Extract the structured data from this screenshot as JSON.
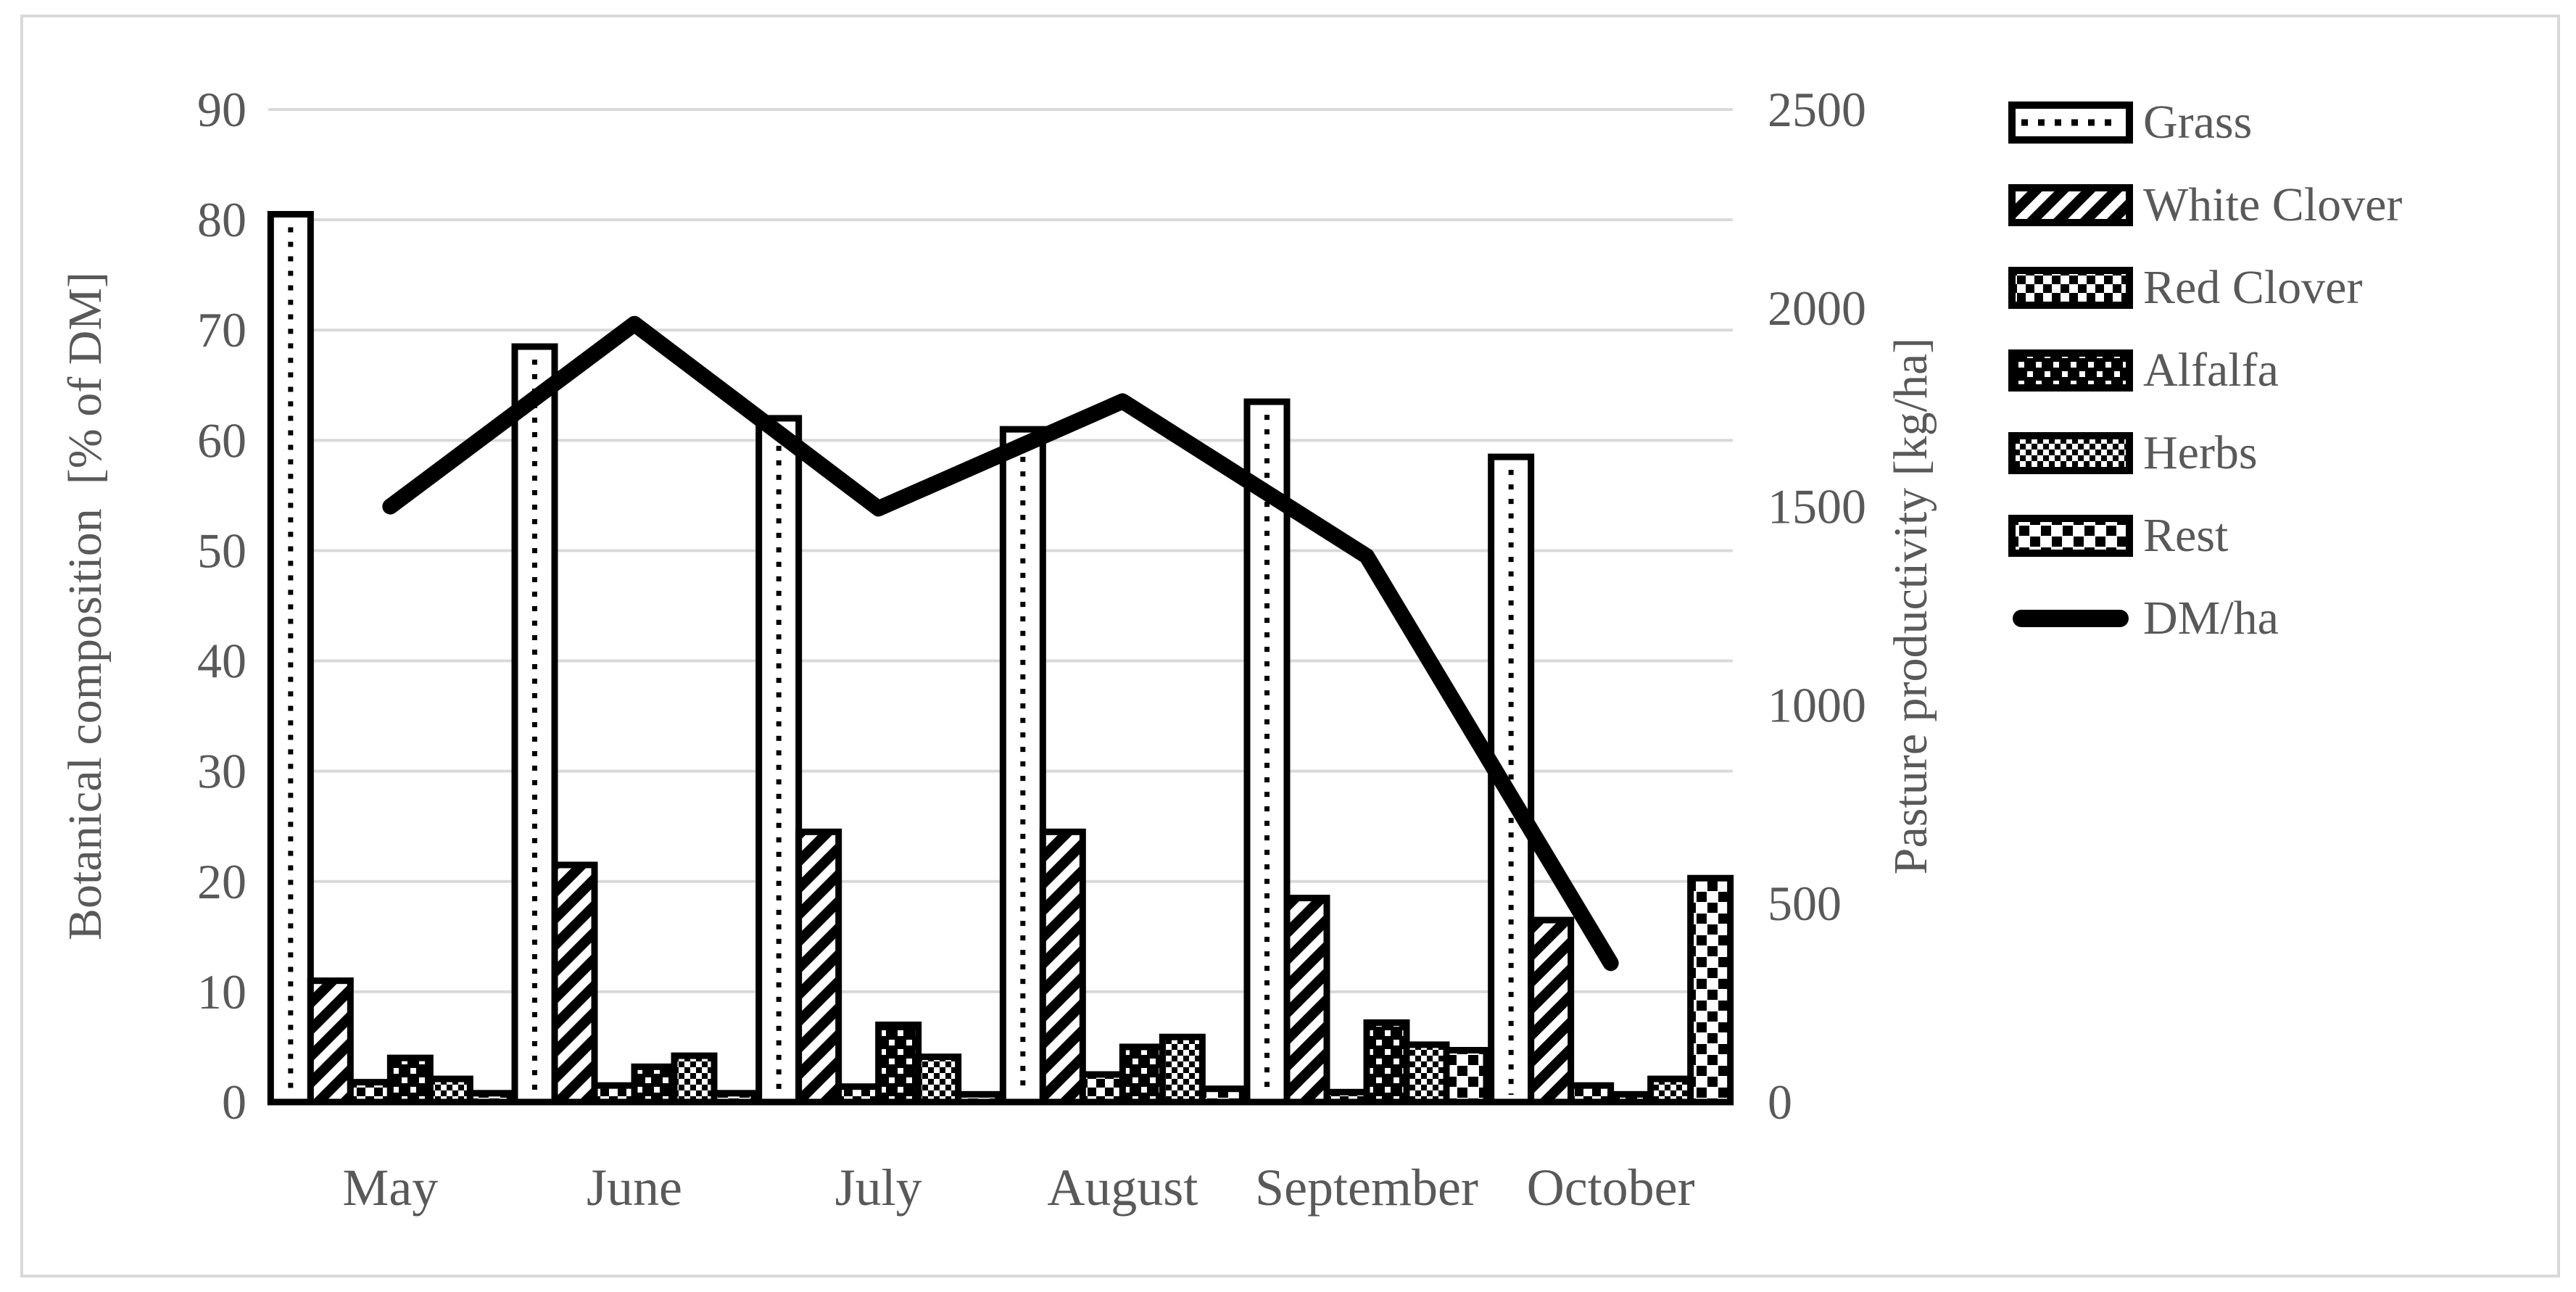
{
  "figure": {
    "background": "#ffffff",
    "frame_color": "#d9d9d9"
  },
  "colors": {
    "text": "#595959",
    "grid": "#d9d9d9",
    "ink": "#000000",
    "background": "#ffffff"
  },
  "legend": {
    "position": "right",
    "entries": [
      {
        "label": "Grass",
        "pattern": "dotted-center"
      },
      {
        "label": "White Clover",
        "pattern": "diagonal-stripes"
      },
      {
        "label": "Red Clover",
        "pattern": "checker-medium"
      },
      {
        "label": "Alfalfa",
        "pattern": "white-dots-on-black"
      },
      {
        "label": "Herbs",
        "pattern": "checker-fine"
      },
      {
        "label": "Rest",
        "pattern": "black-squares-on-white"
      },
      {
        "label": "DM/ha",
        "pattern": "thick-line"
      }
    ]
  },
  "chart_data": {
    "type": "bar+line",
    "title": "",
    "categories": [
      "May",
      "June",
      "July",
      "August",
      "September",
      "October"
    ],
    "bar_series": [
      {
        "name": "Grass",
        "pattern": "dotted-center",
        "values": [
          80.5,
          68.5,
          62.0,
          61.0,
          63.5,
          58.5
        ]
      },
      {
        "name": "White Clover",
        "pattern": "diagonal-stripes",
        "values": [
          11.0,
          21.5,
          24.5,
          24.5,
          18.5,
          16.5
        ]
      },
      {
        "name": "Red Clover",
        "pattern": "checker-medium",
        "values": [
          1.8,
          1.5,
          1.4,
          2.5,
          0.9,
          1.5
        ]
      },
      {
        "name": "Alfalfa",
        "pattern": "white-dots-on-black",
        "values": [
          4.0,
          3.2,
          7.0,
          5.0,
          7.2,
          0.7
        ]
      },
      {
        "name": "Herbs",
        "pattern": "checker-fine",
        "values": [
          2.1,
          4.2,
          4.1,
          5.9,
          5.2,
          2.1
        ]
      },
      {
        "name": "Rest",
        "pattern": "black-squares-on-white",
        "values": [
          0.8,
          0.8,
          0.7,
          1.2,
          4.7,
          20.3
        ]
      }
    ],
    "line_series": {
      "name": "DM/ha",
      "axis": "right",
      "values": [
        1500,
        1960,
        1495,
        1765,
        1375,
        350
      ]
    },
    "left_axis": {
      "label": "Botanical composition  [% of DM]",
      "min": 0,
      "max": 90,
      "tick_step": 10,
      "ticks": [
        "0",
        "10",
        "20",
        "30",
        "40",
        "50",
        "60",
        "70",
        "80",
        "90"
      ]
    },
    "right_axis": {
      "label": "Pasture productivity [kg/ha]",
      "min": 0,
      "max": 2500,
      "tick_step": 500,
      "ticks": [
        "0",
        "500",
        "1000",
        "1500",
        "2000",
        "2500"
      ]
    },
    "grid": true,
    "legend_position": "right"
  }
}
